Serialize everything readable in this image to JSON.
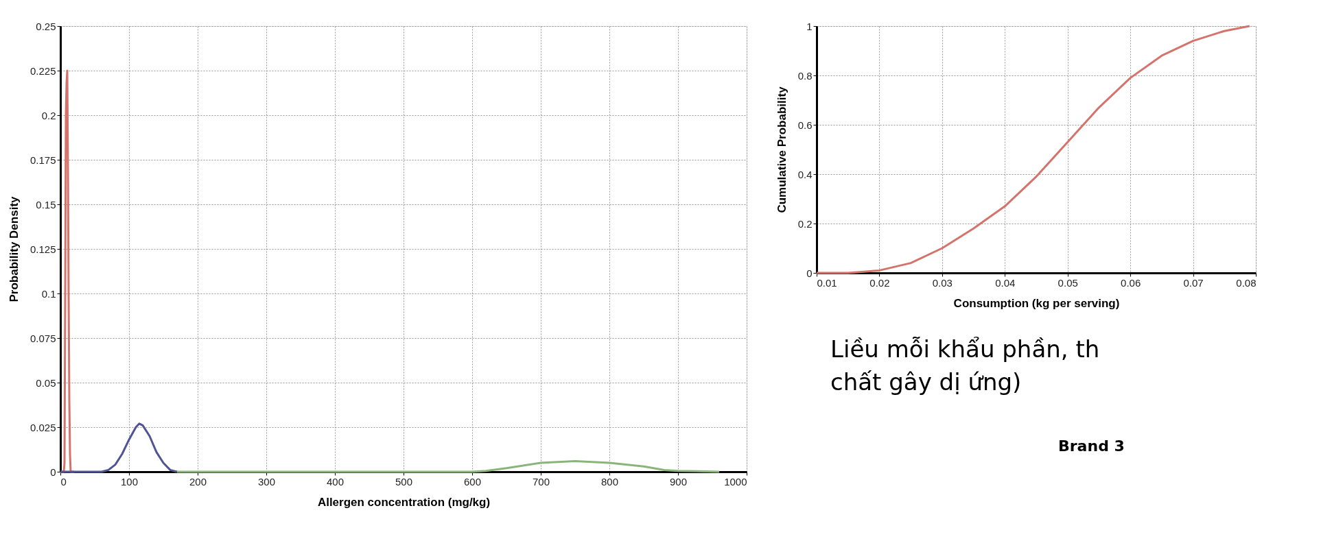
{
  "chart_data": [
    {
      "type": "line",
      "xlabel": "Allergen concentration (mg/kg)",
      "ylabel": "Probability Density",
      "xlim": [
        0,
        1000
      ],
      "xticks": [
        0,
        100,
        200,
        300,
        400,
        500,
        600,
        700,
        800,
        900,
        1000
      ],
      "ylim": [
        0,
        0.25
      ],
      "yticks": [
        0,
        0.025,
        0.05,
        0.075,
        0.1,
        0.125,
        0.15,
        0.175,
        0.2,
        0.225,
        0.25
      ],
      "grid": true,
      "legend": false,
      "marker": "none",
      "line_style": "solid",
      "series": [
        {
          "color": "#d4736c",
          "x": [
            0,
            5,
            6,
            7,
            8,
            9,
            10,
            11,
            12,
            13,
            14,
            15,
            20
          ],
          "values": [
            0,
            0,
            0.005,
            0.1,
            0.2,
            0.218,
            0.225,
            0.17,
            0.1,
            0.04,
            0.01,
            0,
            0
          ]
        },
        {
          "color": "#505496",
          "x": [
            0,
            60,
            70,
            80,
            90,
            100,
            110,
            115,
            120,
            130,
            140,
            150,
            160,
            170
          ],
          "values": [
            0,
            0,
            0.001,
            0.004,
            0.01,
            0.018,
            0.025,
            0.027,
            0.026,
            0.02,
            0.011,
            0.005,
            0.001,
            0
          ]
        },
        {
          "color": "#8ab57a",
          "x": [
            170,
            600,
            620,
            650,
            700,
            750,
            800,
            850,
            880,
            900,
            960
          ],
          "values": [
            0,
            0,
            0.0005,
            0.002,
            0.005,
            0.006,
            0.005,
            0.003,
            0.001,
            0.0005,
            0
          ]
        }
      ]
    },
    {
      "type": "line",
      "xlabel": "Consumption (kg per serving)",
      "ylabel": "Cumulative Probability",
      "xlim": [
        0.01,
        0.08
      ],
      "xticks": [
        0.01,
        0.02,
        0.03,
        0.04,
        0.05,
        0.06,
        0.07,
        0.08
      ],
      "ylim": [
        0,
        1
      ],
      "yticks": [
        0,
        0.2,
        0.4,
        0.6,
        0.8,
        1
      ],
      "grid": true,
      "legend": false,
      "marker": "none",
      "line_style": "solid",
      "series": [
        {
          "color": "#d4736c",
          "x": [
            0.01,
            0.015,
            0.02,
            0.025,
            0.03,
            0.035,
            0.04,
            0.045,
            0.05,
            0.055,
            0.06,
            0.065,
            0.07,
            0.075,
            0.079
          ],
          "values": [
            0,
            0,
            0.01,
            0.04,
            0.1,
            0.18,
            0.27,
            0.39,
            0.53,
            0.67,
            0.79,
            0.88,
            0.94,
            0.98,
            1
          ]
        }
      ],
      "annotations": [
        "Liều mỗi khẩu phần, th",
        "chất gây dị ứng)",
        "Brand 3"
      ]
    }
  ]
}
